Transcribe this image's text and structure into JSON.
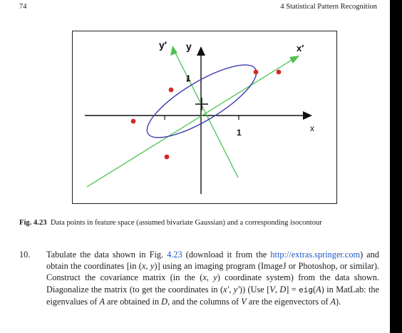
{
  "running_head": {
    "page_number": "74",
    "chapter_title": "4   Statistical Pattern Recognition"
  },
  "figure": {
    "labels": {
      "y_prime": "y′",
      "y": "y",
      "x_prime": "x′",
      "x": "x",
      "tick_x": "1",
      "tick_y": "1"
    },
    "colors": {
      "data_points": "#d42a2a",
      "eigen_axes": "#4cc24c",
      "isocontour": "#3c3cb4",
      "axes": "#111111"
    }
  },
  "caption": {
    "label": "Fig. 4.23",
    "text": "Data points in feature space (assumed bivariate Gaussian) and a corresponding isocontour"
  },
  "exercise": {
    "number": "10.",
    "t1": "Tabulate the data shown in Fig. ",
    "figref": "4.23",
    "t2": " (download it from the ",
    "link": "http://extras.springer.com",
    "t3": ") and obtain the coordinates [in (",
    "x": "x",
    "comma1": ", ",
    "y": "y",
    "t4": ")] using an imaging program (ImageJ or Photoshop, or similar). Construct the covariance matrix (in the (",
    "x2": "x",
    "comma2": ", ",
    "y2": "y",
    "t5": ") coordinate system) from the data shown. Diagonalize the matrix (to get the coordinates in (",
    "xp": "x′",
    "comma3": ", ",
    "yp": "y′",
    "t6": ")) (Use [",
    "V": "V",
    "comma4": ", ",
    "D": "D",
    "t7": "] = ",
    "eig": "eig",
    "t8": "(",
    "A": "A",
    "t9": ") in MatLab: the eigenvalues of ",
    "A2": "A",
    "t10": " are obtained in ",
    "D2": "D",
    "t11": ", and the columns of ",
    "V2": "V",
    "t12": " are the eigenvectors of ",
    "A3": "A",
    "t13": ")."
  }
}
